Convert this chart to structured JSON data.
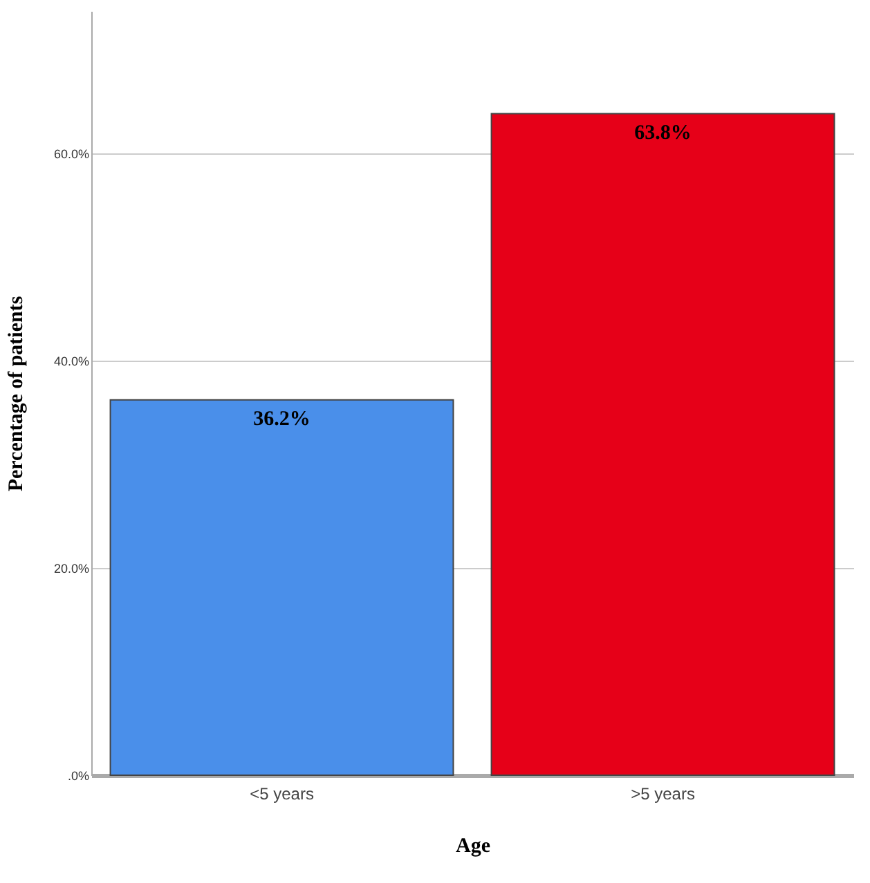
{
  "chart_data": {
    "type": "bar",
    "xlabel": "Age",
    "ylabel": "Percentage of patients",
    "categories": [
      "<5 years",
      ">5 years"
    ],
    "values": [
      36.2,
      63.8
    ],
    "colors": [
      "#4a8fea",
      "#e60018"
    ],
    "value_labels": [
      "36.2%",
      "63.8%"
    ],
    "ylim": [
      0,
      73.7
    ],
    "yticks": [
      {
        "value": 0,
        "label": ".0%"
      },
      {
        "value": 20,
        "label": "20.0%"
      },
      {
        "value": 40,
        "label": "40.0%"
      },
      {
        "value": 60,
        "label": "60.0%"
      }
    ],
    "grid": "y"
  }
}
